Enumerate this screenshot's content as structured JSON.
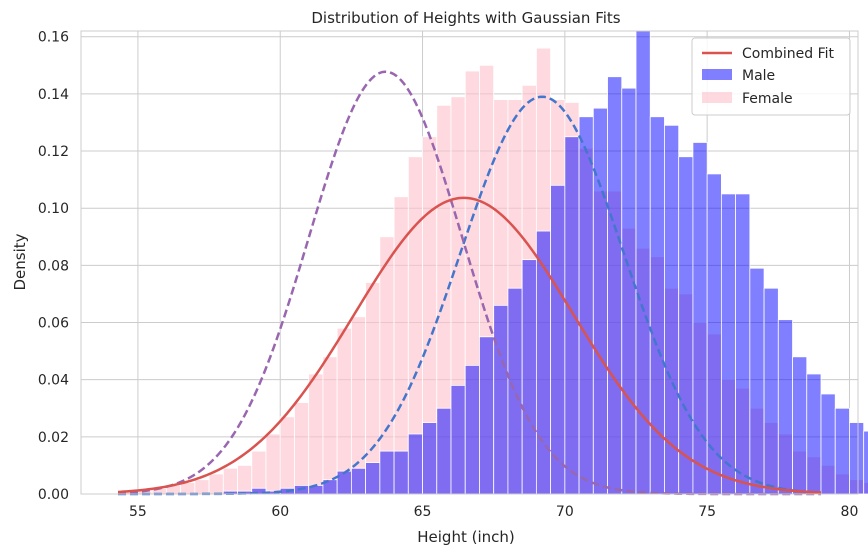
{
  "chart_data": {
    "type": "bar",
    "title": "Distribution of Heights with Gaussian Fits",
    "xlabel": "Height (inch)",
    "ylabel": "Density",
    "xlim": [
      53,
      80.3
    ],
    "ylim": [
      0,
      0.162
    ],
    "xticks": [
      55,
      60,
      65,
      70,
      75,
      80
    ],
    "yticks": [
      0.0,
      0.02,
      0.04,
      0.06,
      0.08,
      0.1,
      0.12,
      0.14,
      0.16
    ],
    "xtick_labels": [
      "55",
      "60",
      "65",
      "70",
      "75",
      "80"
    ],
    "ytick_labels": [
      "0.00",
      "0.02",
      "0.04",
      "0.06",
      "0.08",
      "0.10",
      "0.12",
      "0.14",
      "0.16"
    ],
    "grid": true,
    "legend_position": "top-right",
    "colors": {
      "male": "#0000ff",
      "female": "#ffc0cb",
      "male_fit": "#4477cc",
      "female_fit": "#9966b0",
      "combined_fit": "#d9534f",
      "grid": "#cccccc"
    },
    "histograms": [
      {
        "name": "Male",
        "bin_start": 58.0,
        "bin_width": 0.5,
        "values": [
          0.001,
          0.001,
          0.002,
          0.001,
          0.002,
          0.003,
          0.003,
          0.005,
          0.008,
          0.009,
          0.011,
          0.015,
          0.015,
          0.021,
          0.025,
          0.03,
          0.038,
          0.045,
          0.055,
          0.066,
          0.072,
          0.082,
          0.092,
          0.108,
          0.125,
          0.132,
          0.135,
          0.146,
          0.142,
          0.162,
          0.132,
          0.129,
          0.118,
          0.123,
          0.112,
          0.105,
          0.105,
          0.079,
          0.072,
          0.061,
          0.048,
          0.042,
          0.035,
          0.03,
          0.025,
          0.022,
          0.016,
          0.01,
          0.006,
          0.004,
          0.003,
          0.002
        ]
      },
      {
        "name": "Female",
        "bin_start": 54.5,
        "bin_width": 0.5,
        "values": [
          0.001,
          0.001,
          0.002,
          0.003,
          0.004,
          0.005,
          0.007,
          0.009,
          0.01,
          0.015,
          0.021,
          0.027,
          0.032,
          0.042,
          0.048,
          0.058,
          0.062,
          0.074,
          0.09,
          0.104,
          0.118,
          0.125,
          0.136,
          0.139,
          0.148,
          0.15,
          0.138,
          0.138,
          0.143,
          0.156,
          0.138,
          0.137,
          0.121,
          0.106,
          0.106,
          0.093,
          0.086,
          0.083,
          0.072,
          0.07,
          0.06,
          0.056,
          0.04,
          0.037,
          0.03,
          0.025,
          0.021,
          0.015,
          0.013,
          0.01,
          0.007,
          0.005,
          0.004,
          0.003,
          0.002,
          0.001,
          0.001,
          0.0005
        ]
      }
    ],
    "fits": [
      {
        "name": "Male fit",
        "mean": 69.2,
        "std": 2.87,
        "x_start": 54.3,
        "x_end": 79.0
      },
      {
        "name": "Female fit",
        "mean": 63.7,
        "std": 2.7,
        "x_start": 54.3,
        "x_end": 79.0
      },
      {
        "name": "Combined Fit",
        "mean": 66.45,
        "std": 3.85,
        "x_start": 54.3,
        "x_end": 79.0
      }
    ],
    "legend": [
      {
        "label": "Combined Fit",
        "kind": "line"
      },
      {
        "label": "Male",
        "kind": "patch"
      },
      {
        "label": "Female",
        "kind": "patch"
      }
    ]
  }
}
